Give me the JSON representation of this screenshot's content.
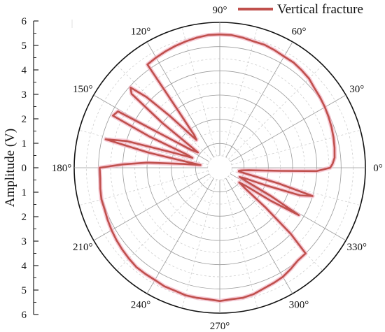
{
  "chart_data": {
    "type": "polar-line",
    "ylabel": "Amplitude (V)",
    "radial_range": [
      0,
      6
    ],
    "radial_ticks": [
      "6",
      "5",
      "4",
      "3",
      "2",
      "1",
      "0",
      "1",
      "2",
      "3",
      "4",
      "5",
      "6"
    ],
    "angle_ticks": [
      {
        "angle": 0,
        "label": "0°"
      },
      {
        "angle": 30,
        "label": "30°"
      },
      {
        "angle": 60,
        "label": "60°"
      },
      {
        "angle": 90,
        "label": "90°"
      },
      {
        "angle": 120,
        "label": "120°"
      },
      {
        "angle": 150,
        "label": "150°"
      },
      {
        "angle": 180,
        "label": "180°"
      },
      {
        "angle": 210,
        "label": "210°"
      },
      {
        "angle": 240,
        "label": "240°"
      },
      {
        "angle": 270,
        "label": "270°"
      },
      {
        "angle": 300,
        "label": "300°"
      },
      {
        "angle": 330,
        "label": "330°"
      }
    ],
    "grid": true,
    "legend_position": "top-right",
    "line_color": "#c0504d",
    "series": [
      {
        "name": "Vertical fracture",
        "theta": [
          0,
          2,
          5,
          10,
          15,
          20,
          25,
          30,
          35,
          40,
          45,
          50,
          55,
          60,
          65,
          70,
          75,
          80,
          85,
          90,
          95,
          100,
          105,
          110,
          115,
          120,
          125,
          126,
          128,
          130,
          132,
          134,
          136,
          138,
          140,
          142,
          145,
          148,
          151,
          154,
          156,
          158,
          160,
          162,
          164,
          166,
          168,
          170,
          172,
          174,
          176,
          178,
          180,
          185,
          190,
          195,
          200,
          205,
          210,
          215,
          220,
          225,
          230,
          235,
          240,
          245,
          250,
          255,
          260,
          265,
          270,
          275,
          280,
          285,
          290,
          295,
          300,
          305,
          310,
          315,
          317,
          319,
          321,
          323,
          325,
          327,
          329,
          331,
          333,
          335,
          337,
          339,
          341,
          343,
          345,
          347,
          349,
          351,
          353,
          355,
          357,
          358,
          360
        ],
        "r": [
          4.55,
          4.65,
          4.75,
          4.8,
          4.85,
          4.9,
          4.95,
          5.0,
          5.05,
          5.1,
          5.2,
          5.25,
          5.3,
          5.3,
          5.35,
          5.4,
          5.4,
          5.45,
          5.5,
          5.5,
          5.5,
          5.45,
          5.4,
          5.35,
          5.3,
          5.25,
          5.2,
          3.0,
          1.7,
          1.5,
          2.0,
          3.0,
          4.2,
          4.95,
          4.75,
          3.0,
          1.1,
          1.4,
          4.8,
          4.9,
          3.2,
          1.5,
          1.2,
          2.0,
          4.0,
          4.85,
          3.0,
          1.3,
          0.8,
          1.5,
          3.0,
          4.0,
          4.95,
          4.95,
          5.0,
          5.05,
          5.05,
          5.1,
          5.15,
          5.2,
          5.25,
          5.3,
          5.35,
          5.35,
          5.35,
          5.4,
          5.4,
          5.45,
          5.45,
          5.45,
          5.5,
          5.45,
          5.45,
          5.4,
          5.3,
          5.25,
          5.2,
          5.1,
          5.0,
          5.0,
          4.0,
          2.5,
          1.3,
          1.0,
          1.3,
          2.5,
          3.8,
          2.4,
          1.2,
          0.9,
          1.1,
          2.0,
          3.5,
          4.0,
          2.5,
          1.2,
          0.8,
          0.8,
          0.9,
          1.2,
          2.5,
          4.0,
          4.55
        ]
      }
    ]
  }
}
